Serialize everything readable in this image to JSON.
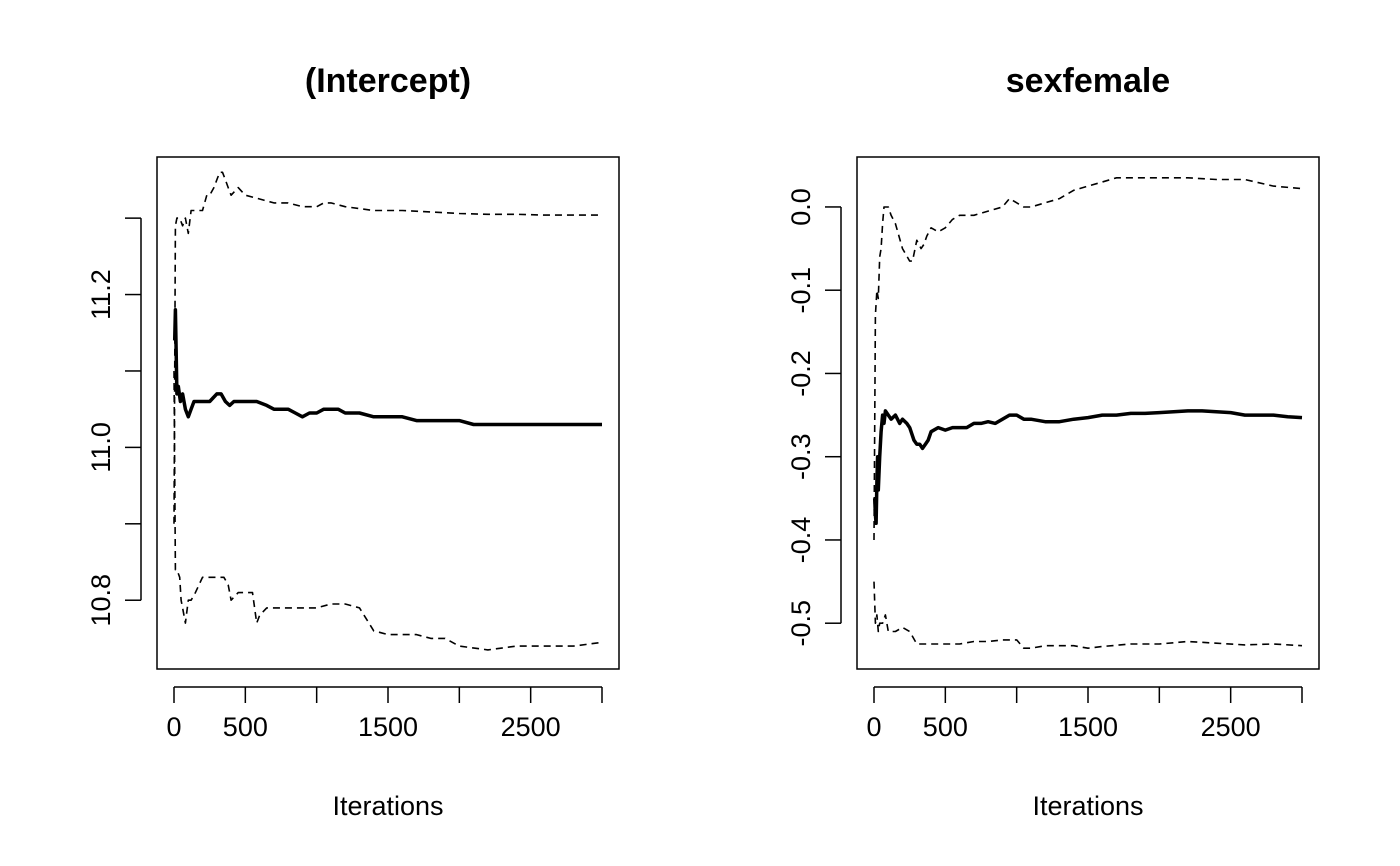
{
  "chart_data": [
    {
      "type": "line",
      "title": "(Intercept)",
      "xlabel": "Iterations",
      "ylabel": "",
      "xlim": [
        0,
        3000
      ],
      "ylim": [
        10.71,
        11.38
      ],
      "x_ticks": [
        0,
        500,
        1000,
        1500,
        2000,
        2500,
        3000
      ],
      "x_tick_labels": [
        "0",
        "500",
        "",
        "1500",
        "",
        "2500",
        ""
      ],
      "y_ticks": [
        10.8,
        10.9,
        11.0,
        11.1,
        11.2,
        11.3
      ],
      "y_tick_labels": [
        "10.8",
        "",
        "11.0",
        "",
        "11.2",
        ""
      ],
      "grid": false,
      "series": [
        {
          "style": "solid-thick",
          "x": [
            5,
            10,
            15,
            20,
            30,
            45,
            60,
            80,
            100,
            120,
            140,
            160,
            200,
            250,
            300,
            330,
            360,
            390,
            420,
            470,
            520,
            580,
            650,
            700,
            750,
            800,
            850,
            900,
            950,
            1000,
            1050,
            1100,
            1150,
            1200,
            1300,
            1400,
            1500,
            1600,
            1700,
            1800,
            1900,
            2000,
            2100,
            2200,
            2300,
            2400,
            2500,
            2600,
            2700,
            2800,
            2900,
            3000
          ],
          "values": [
            11.14,
            11.18,
            11.13,
            11.07,
            11.08,
            11.06,
            11.07,
            11.05,
            11.04,
            11.05,
            11.06,
            11.06,
            11.06,
            11.06,
            11.07,
            11.07,
            11.06,
            11.055,
            11.06,
            11.06,
            11.06,
            11.06,
            11.055,
            11.05,
            11.05,
            11.05,
            11.045,
            11.04,
            11.045,
            11.045,
            11.05,
            11.05,
            11.05,
            11.045,
            11.045,
            11.04,
            11.04,
            11.04,
            11.035,
            11.035,
            11.035,
            11.035,
            11.03,
            11.03,
            11.03,
            11.03,
            11.03,
            11.03,
            11.03,
            11.03,
            11.03,
            11.03
          ]
        },
        {
          "style": "dashed",
          "x": [
            0,
            10,
            20,
            40,
            60,
            80,
            100,
            120,
            150,
            200,
            230,
            250,
            280,
            300,
            320,
            340,
            360,
            380,
            400,
            450,
            500,
            600,
            700,
            800,
            900,
            1000,
            1050,
            1100,
            1200,
            1400,
            1600,
            1800,
            2000,
            2200,
            2400,
            2600,
            2800,
            3000
          ],
          "values": [
            10.9,
            11.29,
            11.3,
            11.3,
            11.29,
            11.3,
            11.28,
            11.31,
            11.31,
            11.31,
            11.33,
            11.33,
            11.34,
            11.35,
            11.36,
            11.36,
            11.35,
            11.34,
            11.33,
            11.34,
            11.33,
            11.325,
            11.32,
            11.32,
            11.315,
            11.315,
            11.32,
            11.32,
            11.315,
            11.31,
            11.31,
            11.308,
            11.306,
            11.305,
            11.305,
            11.304,
            11.304,
            11.304
          ]
        },
        {
          "style": "dashed",
          "x": [
            0,
            10,
            20,
            40,
            50,
            60,
            80,
            100,
            120,
            150,
            200,
            250,
            300,
            350,
            380,
            400,
            450,
            500,
            550,
            580,
            600,
            650,
            700,
            800,
            900,
            1000,
            1100,
            1200,
            1300,
            1400,
            1500,
            1600,
            1700,
            1800,
            1900,
            2000,
            2200,
            2400,
            2600,
            2800,
            3000
          ],
          "values": [
            11.1,
            10.84,
            10.84,
            10.83,
            10.8,
            10.79,
            10.77,
            10.8,
            10.8,
            10.81,
            10.83,
            10.83,
            10.83,
            10.83,
            10.82,
            10.8,
            10.81,
            10.81,
            10.81,
            10.77,
            10.78,
            10.79,
            10.79,
            10.79,
            10.79,
            10.79,
            10.795,
            10.795,
            10.79,
            10.76,
            10.755,
            10.755,
            10.755,
            10.75,
            10.75,
            10.74,
            10.735,
            10.74,
            10.74,
            10.74,
            10.745
          ]
        }
      ]
    },
    {
      "type": "line",
      "title": "sexfemale",
      "xlabel": "Iterations",
      "ylabel": "",
      "xlim": [
        0,
        3000
      ],
      "ylim": [
        -0.555,
        0.06
      ],
      "x_ticks": [
        0,
        500,
        1000,
        1500,
        2000,
        2500,
        3000
      ],
      "x_tick_labels": [
        "0",
        "500",
        "",
        "1500",
        "",
        "2500",
        ""
      ],
      "y_ticks": [
        -0.5,
        -0.4,
        -0.3,
        -0.2,
        -0.1,
        0.0
      ],
      "y_tick_labels": [
        "-0.5",
        "-0.4",
        "-0.3",
        "-0.2",
        "-0.1",
        "0.0"
      ],
      "grid": false,
      "series": [
        {
          "style": "solid-thick",
          "x": [
            5,
            10,
            15,
            20,
            25,
            30,
            40,
            50,
            60,
            70,
            80,
            100,
            120,
            150,
            180,
            200,
            230,
            250,
            280,
            300,
            320,
            340,
            360,
            380,
            400,
            450,
            500,
            550,
            600,
            650,
            700,
            750,
            800,
            850,
            900,
            950,
            1000,
            1050,
            1100,
            1200,
            1300,
            1400,
            1500,
            1600,
            1700,
            1800,
            1900,
            2000,
            2100,
            2200,
            2300,
            2400,
            2500,
            2600,
            2700,
            2800,
            2900,
            3000
          ],
          "values": [
            -0.35,
            -0.37,
            -0.38,
            -0.33,
            -0.3,
            -0.34,
            -0.3,
            -0.27,
            -0.25,
            -0.26,
            -0.245,
            -0.25,
            -0.255,
            -0.25,
            -0.26,
            -0.255,
            -0.26,
            -0.265,
            -0.28,
            -0.285,
            -0.285,
            -0.29,
            -0.285,
            -0.28,
            -0.27,
            -0.265,
            -0.268,
            -0.265,
            -0.265,
            -0.265,
            -0.26,
            -0.26,
            -0.258,
            -0.26,
            -0.255,
            -0.25,
            -0.25,
            -0.255,
            -0.255,
            -0.258,
            -0.258,
            -0.255,
            -0.253,
            -0.25,
            -0.25,
            -0.248,
            -0.248,
            -0.247,
            -0.246,
            -0.245,
            -0.245,
            -0.246,
            -0.247,
            -0.25,
            -0.25,
            -0.25,
            -0.252,
            -0.253
          ]
        },
        {
          "style": "dashed",
          "x": [
            0,
            10,
            20,
            30,
            40,
            50,
            60,
            70,
            80,
            100,
            120,
            150,
            200,
            250,
            270,
            300,
            330,
            350,
            370,
            400,
            450,
            500,
            550,
            600,
            700,
            800,
            900,
            950,
            1000,
            1050,
            1100,
            1200,
            1300,
            1400,
            1500,
            1600,
            1700,
            1800,
            1900,
            2000,
            2200,
            2400,
            2600,
            2800,
            3000
          ],
          "values": [
            -0.4,
            -0.13,
            -0.1,
            -0.11,
            -0.06,
            -0.05,
            -0.02,
            0.0,
            0.0,
            0.0,
            -0.01,
            -0.02,
            -0.05,
            -0.065,
            -0.065,
            -0.04,
            -0.05,
            -0.045,
            -0.035,
            -0.025,
            -0.03,
            -0.025,
            -0.015,
            -0.01,
            -0.01,
            -0.005,
            0.0,
            0.01,
            0.005,
            0.0,
            0.0,
            0.005,
            0.01,
            0.02,
            0.025,
            0.03,
            0.035,
            0.035,
            0.035,
            0.035,
            0.035,
            0.033,
            0.033,
            0.025,
            0.022
          ]
        },
        {
          "style": "dashed",
          "x": [
            0,
            10,
            20,
            30,
            40,
            60,
            80,
            100,
            150,
            200,
            250,
            300,
            350,
            400,
            500,
            600,
            700,
            800,
            900,
            1000,
            1050,
            1100,
            1200,
            1300,
            1400,
            1500,
            1600,
            1800,
            2000,
            2200,
            2400,
            2600,
            2800,
            3000
          ],
          "values": [
            -0.45,
            -0.5,
            -0.49,
            -0.51,
            -0.5,
            -0.5,
            -0.49,
            -0.51,
            -0.51,
            -0.505,
            -0.51,
            -0.525,
            -0.525,
            -0.525,
            -0.525,
            -0.525,
            -0.522,
            -0.522,
            -0.52,
            -0.52,
            -0.53,
            -0.53,
            -0.527,
            -0.527,
            -0.527,
            -0.53,
            -0.528,
            -0.525,
            -0.525,
            -0.522,
            -0.524,
            -0.526,
            -0.525,
            -0.527
          ]
        }
      ]
    }
  ]
}
